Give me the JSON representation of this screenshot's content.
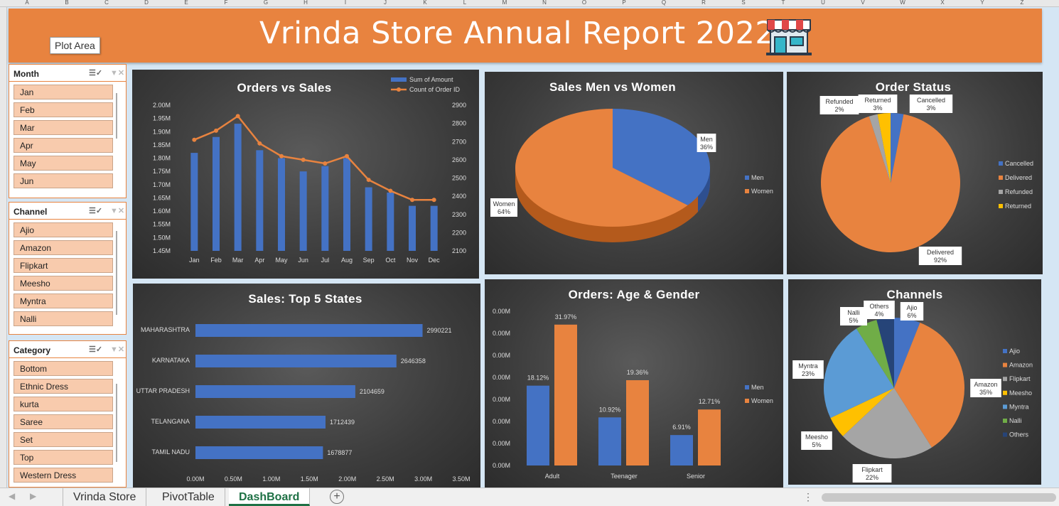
{
  "columns": [
    "A",
    "B",
    "C",
    "D",
    "E",
    "F",
    "G",
    "H",
    "I",
    "J",
    "K",
    "L",
    "M",
    "N",
    "O",
    "P",
    "Q",
    "R",
    "S",
    "T",
    "U",
    "V",
    "W",
    "X",
    "Y",
    "Z"
  ],
  "header": {
    "title": "Vrinda Store Annual Report 2022",
    "tooltip": "Plot Area"
  },
  "slicers": {
    "month": {
      "title": "Month",
      "items": [
        "Jan",
        "Feb",
        "Mar",
        "Apr",
        "May",
        "Jun"
      ]
    },
    "channel": {
      "title": "Channel",
      "items": [
        "Ajio",
        "Amazon",
        "Flipkart",
        "Meesho",
        "Myntra",
        "Nalli"
      ]
    },
    "category": {
      "title": "Category",
      "items": [
        "Bottom",
        "Ethnic Dress",
        "kurta",
        "Saree",
        "Set",
        "Top",
        "Western Dress"
      ]
    }
  },
  "tabs": {
    "sheet1": "Vrinda Store",
    "sheet2": "PivotTable",
    "sheet3": "DashBoard"
  },
  "colors": {
    "orange": "#e8833f",
    "blue": "#4472c4",
    "gray": "#a5a5a5",
    "yellow": "#ffc000",
    "lightblue": "#5b9bd5",
    "green": "#70ad47",
    "navy": "#264478"
  },
  "chart_data": [
    {
      "id": "orders_sales",
      "type": "bar+line",
      "title": "Orders vs Sales",
      "categories": [
        "Jan",
        "Feb",
        "Mar",
        "Apr",
        "May",
        "Jun",
        "Jul",
        "Aug",
        "Sep",
        "Oct",
        "Nov",
        "Dec"
      ],
      "series": [
        {
          "name": "Sum of Amount",
          "type": "bar",
          "axis": "left",
          "values": [
            1.82,
            1.88,
            1.93,
            1.83,
            1.8,
            1.75,
            1.77,
            1.8,
            1.69,
            1.67,
            1.62,
            1.62
          ]
        },
        {
          "name": "Count of Order ID",
          "type": "line",
          "axis": "right",
          "values": [
            2710,
            2760,
            2840,
            2690,
            2620,
            2600,
            2580,
            2620,
            2490,
            2430,
            2380,
            2380
          ]
        }
      ],
      "left_ticks": [
        "1.45M",
        "1.50M",
        "1.55M",
        "1.60M",
        "1.65M",
        "1.70M",
        "1.75M",
        "1.80M",
        "1.85M",
        "1.90M",
        "1.95M",
        "2.00M"
      ],
      "right_ticks": [
        "2100",
        "2200",
        "2300",
        "2400",
        "2500",
        "2600",
        "2700",
        "2800",
        "2900"
      ],
      "ylim_left": [
        1.45,
        2.0
      ],
      "ylim_right": [
        2100,
        2900
      ],
      "legend": "top-right"
    },
    {
      "id": "men_women",
      "type": "pie",
      "title": "Sales Men vs Women",
      "labels": [
        "Men",
        "Women"
      ],
      "values": [
        36,
        64
      ],
      "data_labels": [
        "36%",
        "64%"
      ],
      "legend": "right"
    },
    {
      "id": "order_status",
      "type": "pie",
      "title": "Order Status",
      "labels": [
        "Cancelled",
        "Delivered",
        "Refunded",
        "Returned"
      ],
      "values": [
        3,
        92,
        2,
        3
      ],
      "data_labels": [
        "3%",
        "92%",
        "2%",
        "3%"
      ],
      "legend": "right"
    },
    {
      "id": "top_states",
      "type": "bar",
      "orientation": "horizontal",
      "title": "Sales: Top 5 States",
      "categories": [
        "MAHARASHTRA",
        "KARNATAKA",
        "UTTAR PRADESH",
        "TELANGANA",
        "TAMIL NADU"
      ],
      "values": [
        2990221,
        2646358,
        2104659,
        1712439,
        1678877
      ],
      "data_labels": [
        "2990221",
        "2646358",
        "2104659",
        "1712439",
        "1678877"
      ],
      "x_ticks": [
        "0.00M",
        "0.50M",
        "1.00M",
        "1.50M",
        "2.00M",
        "2.50M",
        "3.00M",
        "3.50M"
      ],
      "xlim": [
        0,
        3500000
      ]
    },
    {
      "id": "age_gender",
      "type": "bar",
      "title": "Orders: Age & Gender",
      "categories": [
        "Adult",
        "Teenager",
        "Senior"
      ],
      "series": [
        {
          "name": "Men",
          "values": [
            18.12,
            10.92,
            6.91
          ],
          "data_labels": [
            "18.12%",
            "10.92%",
            "6.91%"
          ]
        },
        {
          "name": "Women",
          "values": [
            31.97,
            19.36,
            12.71
          ],
          "data_labels": [
            "31.97%",
            "19.36%",
            "12.71%"
          ]
        }
      ],
      "y_ticks": [
        "0.00M",
        "0.00M",
        "0.00M",
        "0.00M",
        "0.00M",
        "0.00M",
        "0.00M",
        "0.00M"
      ],
      "ylim": [
        0,
        35
      ],
      "legend": "right"
    },
    {
      "id": "channels",
      "type": "pie",
      "title": "Channels",
      "labels": [
        "Ajio",
        "Amazon",
        "Flipkart",
        "Meesho",
        "Myntra",
        "Nalli",
        "Others"
      ],
      "values": [
        6,
        35,
        22,
        5,
        23,
        5,
        4
      ],
      "data_labels": [
        "6%",
        "35%",
        "22%",
        "5%",
        "23%",
        "5%",
        "4%"
      ],
      "legend": "right"
    }
  ]
}
